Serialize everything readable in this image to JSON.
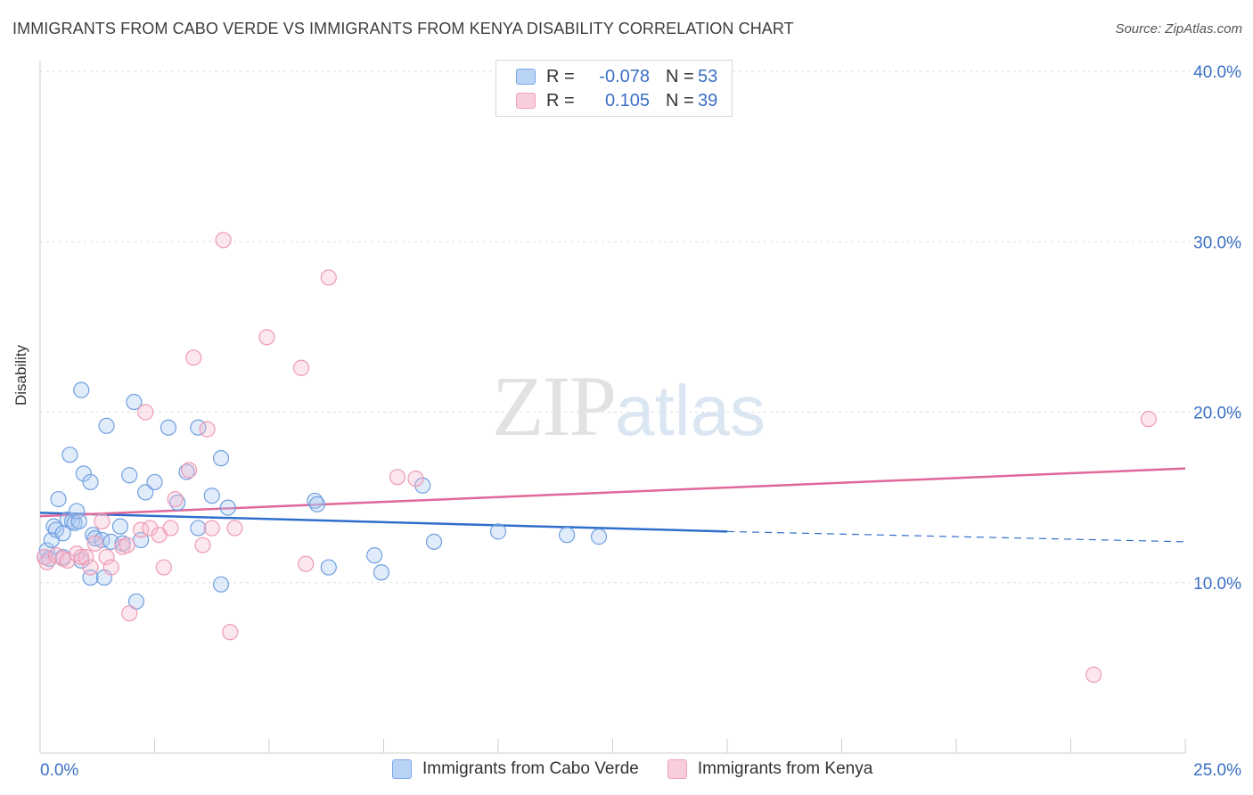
{
  "header": {
    "title": "IMMIGRANTS FROM CABO VERDE VS IMMIGRANTS FROM KENYA DISABILITY CORRELATION CHART",
    "source": "Source: ZipAtlas.com"
  },
  "watermark": {
    "zip": "ZIP",
    "atlas": "atlas"
  },
  "legend": {
    "rows": [
      {
        "r_label": "R =",
        "r_value": "-0.078",
        "n_label": "N =",
        "n_value": "53",
        "color": "#7aa7e8",
        "fill": "#b9d3f5"
      },
      {
        "r_label": "R =",
        "r_value": "0.105",
        "n_label": "N =",
        "n_value": "39",
        "color": "#f0a0b8",
        "fill": "#f9cedb"
      }
    ]
  },
  "bottom_legend": {
    "items": [
      {
        "label": "Immigrants from Cabo Verde"
      },
      {
        "label": "Immigrants from Kenya"
      }
    ]
  },
  "chart_data": {
    "type": "scatter",
    "title": "IMMIGRANTS FROM CABO VERDE VS IMMIGRANTS FROM KENYA DISABILITY CORRELATION CHART",
    "xlabel": "",
    "ylabel": "Disability",
    "xlim": [
      0,
      25
    ],
    "ylim": [
      0,
      40
    ],
    "x_tick_labels": [
      "0.0%",
      "25.0%"
    ],
    "y_ticks": [
      10,
      20,
      30,
      40
    ],
    "y_tick_labels": [
      "10.0%",
      "20.0%",
      "30.0%",
      "40.0%"
    ],
    "series": [
      {
        "name": "Immigrants from Cabo Verde",
        "color": "#6f9fe0",
        "fill": "rgba(170,200,240,0.35)",
        "line_color": "#2f6fcc",
        "trend": {
          "x0": 0,
          "y0": 14.1,
          "x1": 15.0,
          "y1": 13.0,
          "dash_to_x": 25.0,
          "dash_to_y": 12.4
        },
        "points": [
          [
            0.15,
            11.9
          ],
          [
            0.2,
            11.4
          ],
          [
            0.25,
            12.5
          ],
          [
            0.3,
            13.3
          ],
          [
            0.35,
            13.1
          ],
          [
            0.4,
            14.9
          ],
          [
            0.5,
            11.5
          ],
          [
            0.5,
            12.9
          ],
          [
            0.6,
            13.7
          ],
          [
            0.65,
            17.5
          ],
          [
            0.7,
            13.6
          ],
          [
            0.75,
            13.5
          ],
          [
            0.8,
            14.2
          ],
          [
            0.85,
            13.6
          ],
          [
            0.9,
            11.3
          ],
          [
            0.9,
            21.3
          ],
          [
            0.95,
            16.4
          ],
          [
            1.1,
            15.9
          ],
          [
            1.1,
            10.3
          ],
          [
            1.15,
            12.8
          ],
          [
            1.2,
            12.6
          ],
          [
            1.35,
            12.5
          ],
          [
            1.4,
            10.3
          ],
          [
            1.45,
            19.2
          ],
          [
            1.55,
            12.4
          ],
          [
            1.75,
            13.3
          ],
          [
            1.8,
            12.3
          ],
          [
            1.95,
            16.3
          ],
          [
            2.05,
            20.6
          ],
          [
            2.1,
            8.9
          ],
          [
            2.2,
            12.5
          ],
          [
            2.3,
            15.3
          ],
          [
            2.5,
            15.9
          ],
          [
            2.8,
            19.1
          ],
          [
            3.0,
            14.7
          ],
          [
            3.2,
            16.5
          ],
          [
            3.45,
            13.2
          ],
          [
            3.45,
            19.1
          ],
          [
            3.75,
            15.1
          ],
          [
            3.95,
            17.3
          ],
          [
            3.95,
            9.9
          ],
          [
            4.1,
            14.4
          ],
          [
            6.0,
            14.8
          ],
          [
            6.05,
            14.6
          ],
          [
            6.3,
            10.9
          ],
          [
            7.3,
            11.6
          ],
          [
            7.45,
            10.6
          ],
          [
            8.35,
            15.7
          ],
          [
            8.6,
            12.4
          ],
          [
            10.0,
            13.0
          ],
          [
            11.5,
            12.8
          ],
          [
            12.2,
            12.7
          ],
          [
            0.1,
            11.5
          ]
        ]
      },
      {
        "name": "Immigrants from Kenya",
        "color": "#ee9ab5",
        "fill": "rgba(245,185,205,0.35)",
        "line_color": "#e0679a",
        "trend": {
          "x0": 0,
          "y0": 13.9,
          "x1": 25.0,
          "y1": 16.7
        },
        "points": [
          [
            0.1,
            11.5
          ],
          [
            0.15,
            11.2
          ],
          [
            0.35,
            11.6
          ],
          [
            0.5,
            11.4
          ],
          [
            0.6,
            11.3
          ],
          [
            0.8,
            11.7
          ],
          [
            0.9,
            11.5
          ],
          [
            1.0,
            11.5
          ],
          [
            1.1,
            10.9
          ],
          [
            1.2,
            12.3
          ],
          [
            1.35,
            13.6
          ],
          [
            1.45,
            11.5
          ],
          [
            1.55,
            10.9
          ],
          [
            1.8,
            12.1
          ],
          [
            1.9,
            12.2
          ],
          [
            1.95,
            8.2
          ],
          [
            2.2,
            13.1
          ],
          [
            2.3,
            20.0
          ],
          [
            2.4,
            13.2
          ],
          [
            2.6,
            12.8
          ],
          [
            2.7,
            10.9
          ],
          [
            2.85,
            13.2
          ],
          [
            2.95,
            14.9
          ],
          [
            3.25,
            16.6
          ],
          [
            3.35,
            23.2
          ],
          [
            3.55,
            12.2
          ],
          [
            3.65,
            19.0
          ],
          [
            3.75,
            13.2
          ],
          [
            4.0,
            30.1
          ],
          [
            4.15,
            7.1
          ],
          [
            4.25,
            13.2
          ],
          [
            4.95,
            24.4
          ],
          [
            5.7,
            22.6
          ],
          [
            5.8,
            11.1
          ],
          [
            6.3,
            27.9
          ],
          [
            7.8,
            16.2
          ],
          [
            8.2,
            16.1
          ],
          [
            23.0,
            4.6
          ],
          [
            24.2,
            19.6
          ]
        ]
      }
    ]
  }
}
